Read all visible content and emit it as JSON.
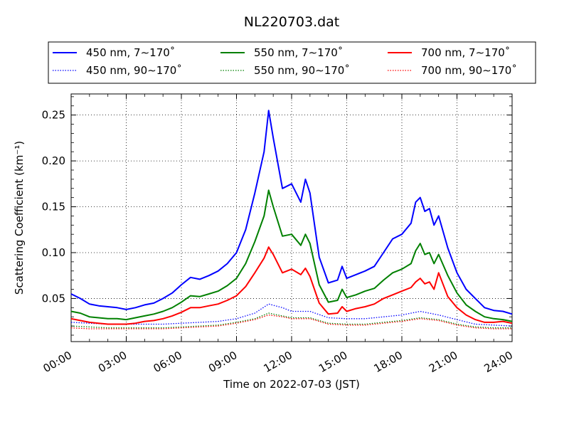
{
  "chart_data": {
    "type": "line",
    "title": "NL220703.dat",
    "xlabel": "Time on 2022-07-03 (JST)",
    "ylabel": "Scattering Coefficient (km⁻¹)",
    "xlim": [
      "00:00",
      "24:00"
    ],
    "ylim": [
      0.003,
      0.273
    ],
    "x_ticks": [
      "00:00",
      "03:00",
      "06:00",
      "09:00",
      "12:00",
      "15:00",
      "18:00",
      "21:00",
      "24:00"
    ],
    "y_ticks": [
      "0.05",
      "0.10",
      "0.15",
      "0.20",
      "0.25"
    ],
    "grid": true,
    "legend_position": "top",
    "series": [
      {
        "name": "450 nm, 7∼170˚",
        "color": "#0000ff",
        "style": "solid",
        "x": [
          "00:00",
          "00:30",
          "01:00",
          "01:30",
          "02:00",
          "02:30",
          "03:00",
          "03:30",
          "04:00",
          "04:30",
          "05:00",
          "05:30",
          "06:00",
          "06:30",
          "07:00",
          "07:30",
          "08:00",
          "08:30",
          "09:00",
          "09:30",
          "10:00",
          "10:30",
          "10:45",
          "11:00",
          "11:30",
          "12:00",
          "12:30",
          "12:45",
          "13:00",
          "13:30",
          "14:00",
          "14:30",
          "14:45",
          "15:00",
          "15:30",
          "16:00",
          "16:30",
          "17:00",
          "17:30",
          "18:00",
          "18:30",
          "18:45",
          "19:00",
          "19:15",
          "19:30",
          "19:45",
          "20:00",
          "20:30",
          "21:00",
          "21:30",
          "22:00",
          "22:30",
          "23:00",
          "23:30",
          "24:00"
        ],
        "y": [
          0.055,
          0.05,
          0.044,
          0.042,
          0.041,
          0.04,
          0.038,
          0.04,
          0.043,
          0.045,
          0.05,
          0.056,
          0.065,
          0.073,
          0.071,
          0.075,
          0.08,
          0.088,
          0.1,
          0.125,
          0.165,
          0.21,
          0.255,
          0.225,
          0.17,
          0.175,
          0.155,
          0.18,
          0.165,
          0.095,
          0.067,
          0.07,
          0.085,
          0.072,
          0.076,
          0.08,
          0.085,
          0.1,
          0.115,
          0.12,
          0.132,
          0.155,
          0.16,
          0.145,
          0.148,
          0.13,
          0.14,
          0.105,
          0.078,
          0.06,
          0.05,
          0.04,
          0.037,
          0.036,
          0.033
        ]
      },
      {
        "name": "550 nm, 7∼170˚",
        "color": "#008000",
        "style": "solid",
        "x": [
          "00:00",
          "00:30",
          "01:00",
          "01:30",
          "02:00",
          "02:30",
          "03:00",
          "03:30",
          "04:00",
          "04:30",
          "05:00",
          "05:30",
          "06:00",
          "06:30",
          "07:00",
          "07:30",
          "08:00",
          "08:30",
          "09:00",
          "09:30",
          "10:00",
          "10:30",
          "10:45",
          "11:00",
          "11:30",
          "12:00",
          "12:30",
          "12:45",
          "13:00",
          "13:30",
          "14:00",
          "14:30",
          "14:45",
          "15:00",
          "15:30",
          "16:00",
          "16:30",
          "17:00",
          "17:30",
          "18:00",
          "18:30",
          "18:45",
          "19:00",
          "19:15",
          "19:30",
          "19:45",
          "20:00",
          "20:30",
          "21:00",
          "21:30",
          "22:00",
          "22:30",
          "23:00",
          "23:30",
          "24:00"
        ],
        "y": [
          0.036,
          0.034,
          0.03,
          0.029,
          0.028,
          0.028,
          0.027,
          0.029,
          0.031,
          0.033,
          0.036,
          0.04,
          0.046,
          0.053,
          0.052,
          0.055,
          0.058,
          0.064,
          0.072,
          0.088,
          0.112,
          0.14,
          0.168,
          0.15,
          0.118,
          0.12,
          0.108,
          0.12,
          0.11,
          0.065,
          0.046,
          0.048,
          0.06,
          0.051,
          0.054,
          0.058,
          0.061,
          0.07,
          0.078,
          0.082,
          0.088,
          0.102,
          0.11,
          0.098,
          0.1,
          0.088,
          0.098,
          0.075,
          0.056,
          0.043,
          0.036,
          0.03,
          0.028,
          0.027,
          0.025
        ]
      },
      {
        "name": "700 nm, 7∼170˚",
        "color": "#ff0000",
        "style": "solid",
        "x": [
          "00:00",
          "00:30",
          "01:00",
          "01:30",
          "02:00",
          "02:30",
          "03:00",
          "03:30",
          "04:00",
          "04:30",
          "05:00",
          "05:30",
          "06:00",
          "06:30",
          "07:00",
          "07:30",
          "08:00",
          "08:30",
          "09:00",
          "09:30",
          "10:00",
          "10:30",
          "10:45",
          "11:00",
          "11:30",
          "12:00",
          "12:30",
          "12:45",
          "13:00",
          "13:30",
          "14:00",
          "14:30",
          "14:45",
          "15:00",
          "15:30",
          "16:00",
          "16:30",
          "17:00",
          "17:30",
          "18:00",
          "18:30",
          "18:45",
          "19:00",
          "19:15",
          "19:30",
          "19:45",
          "20:00",
          "20:30",
          "21:00",
          "21:30",
          "22:00",
          "22:30",
          "23:00",
          "23:30",
          "24:00"
        ],
        "y": [
          0.028,
          0.026,
          0.024,
          0.023,
          0.022,
          0.022,
          0.022,
          0.023,
          0.025,
          0.026,
          0.028,
          0.031,
          0.035,
          0.04,
          0.04,
          0.042,
          0.044,
          0.048,
          0.053,
          0.063,
          0.078,
          0.094,
          0.106,
          0.098,
          0.078,
          0.082,
          0.076,
          0.083,
          0.074,
          0.045,
          0.033,
          0.034,
          0.041,
          0.036,
          0.039,
          0.041,
          0.044,
          0.05,
          0.054,
          0.058,
          0.062,
          0.068,
          0.072,
          0.066,
          0.068,
          0.06,
          0.078,
          0.052,
          0.04,
          0.032,
          0.027,
          0.024,
          0.024,
          0.025,
          0.023
        ]
      },
      {
        "name": "450 nm, 90∼170˚",
        "color": "#0000ff",
        "style": "dotted",
        "x": [
          "00:00",
          "01:00",
          "02:00",
          "03:00",
          "04:00",
          "05:00",
          "06:00",
          "07:00",
          "08:00",
          "09:00",
          "10:00",
          "10:45",
          "11:30",
          "12:00",
          "13:00",
          "14:00",
          "15:00",
          "16:00",
          "17:00",
          "18:00",
          "19:00",
          "20:00",
          "21:00",
          "22:00",
          "23:00",
          "24:00"
        ],
        "y": [
          0.024,
          0.023,
          0.022,
          0.022,
          0.022,
          0.022,
          0.023,
          0.024,
          0.025,
          0.028,
          0.034,
          0.044,
          0.04,
          0.036,
          0.036,
          0.029,
          0.028,
          0.028,
          0.03,
          0.032,
          0.036,
          0.032,
          0.027,
          0.022,
          0.021,
          0.02
        ]
      },
      {
        "name": "550 nm, 90∼170˚",
        "color": "#008000",
        "style": "dotted",
        "x": [
          "00:00",
          "01:00",
          "02:00",
          "03:00",
          "04:00",
          "05:00",
          "06:00",
          "07:00",
          "08:00",
          "09:00",
          "10:00",
          "10:45",
          "11:30",
          "12:00",
          "13:00",
          "14:00",
          "15:00",
          "16:00",
          "17:00",
          "18:00",
          "19:00",
          "20:00",
          "21:00",
          "22:00",
          "23:00",
          "24:00"
        ],
        "y": [
          0.02,
          0.019,
          0.018,
          0.018,
          0.018,
          0.018,
          0.019,
          0.02,
          0.021,
          0.024,
          0.028,
          0.034,
          0.031,
          0.029,
          0.029,
          0.023,
          0.022,
          0.022,
          0.024,
          0.026,
          0.029,
          0.027,
          0.022,
          0.019,
          0.018,
          0.018
        ]
      },
      {
        "name": "700 nm, 90∼170˚",
        "color": "#ff0000",
        "style": "dotted",
        "x": [
          "00:00",
          "01:00",
          "02:00",
          "03:00",
          "04:00",
          "05:00",
          "06:00",
          "07:00",
          "08:00",
          "09:00",
          "10:00",
          "10:45",
          "11:30",
          "12:00",
          "13:00",
          "14:00",
          "15:00",
          "16:00",
          "17:00",
          "18:00",
          "19:00",
          "20:00",
          "21:00",
          "22:00",
          "23:00",
          "24:00"
        ],
        "y": [
          0.018,
          0.017,
          0.017,
          0.017,
          0.017,
          0.017,
          0.018,
          0.019,
          0.02,
          0.023,
          0.027,
          0.032,
          0.03,
          0.028,
          0.028,
          0.022,
          0.021,
          0.021,
          0.023,
          0.025,
          0.028,
          0.026,
          0.021,
          0.018,
          0.017,
          0.017
        ]
      }
    ]
  }
}
